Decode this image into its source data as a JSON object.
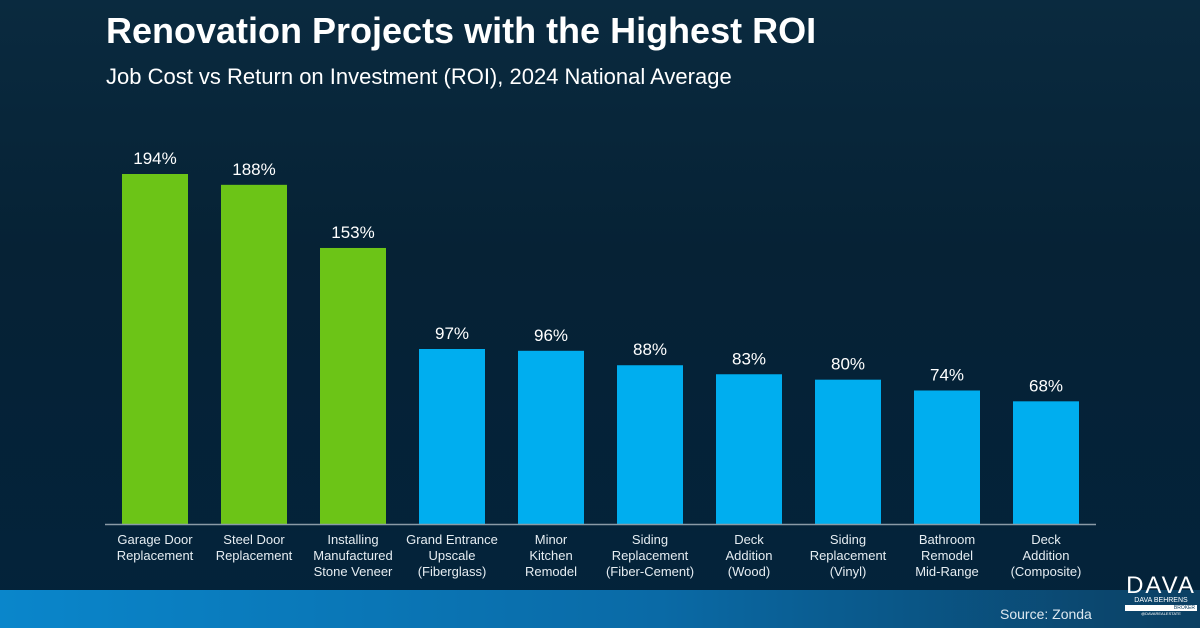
{
  "title": "Renovation Projects with the Highest ROI",
  "subtitle": "Job Cost vs Return on Investment (ROI), 2024 National Average",
  "source": "Source: Zonda",
  "logo": {
    "name": "DAVA",
    "line1": "DAVA BEHRENS",
    "line2": "BROKER",
    "line3": "@DAVAREALESTATE"
  },
  "colors": {
    "highlight": "#6cc417",
    "default": "#00aeef",
    "axis": "#8a9aa6"
  },
  "chart_data": {
    "type": "bar",
    "title": "Renovation Projects with the Highest ROI",
    "subtitle": "Job Cost vs Return on Investment (ROI), 2024 National Average",
    "categories": [
      [
        "Garage Door",
        "Replacement"
      ],
      [
        "Steel Door",
        "Replacement"
      ],
      [
        "Installing",
        "Manufactured",
        "Stone Veneer"
      ],
      [
        "Grand Entrance",
        "Upscale",
        "(Fiberglass)"
      ],
      [
        "Minor",
        "Kitchen",
        "Remodel"
      ],
      [
        "Siding",
        "Replacement",
        "(Fiber-Cement)"
      ],
      [
        "Deck",
        "Addition",
        "(Wood)"
      ],
      [
        "Siding",
        "Replacement",
        "(Vinyl)"
      ],
      [
        "Bathroom",
        "Remodel",
        "Mid-Range"
      ],
      [
        "Deck",
        "Addition",
        "(Composite)"
      ]
    ],
    "values": [
      194,
      188,
      153,
      97,
      96,
      88,
      83,
      80,
      74,
      68
    ],
    "data_labels": [
      "194%",
      "188%",
      "153%",
      "97%",
      "96%",
      "88%",
      "83%",
      "80%",
      "74%",
      "68%"
    ],
    "highlighted": [
      true,
      true,
      true,
      false,
      false,
      false,
      false,
      false,
      false,
      false
    ],
    "unit": "%",
    "ylim": [
      0,
      200
    ],
    "grid": false,
    "legend": "none"
  }
}
